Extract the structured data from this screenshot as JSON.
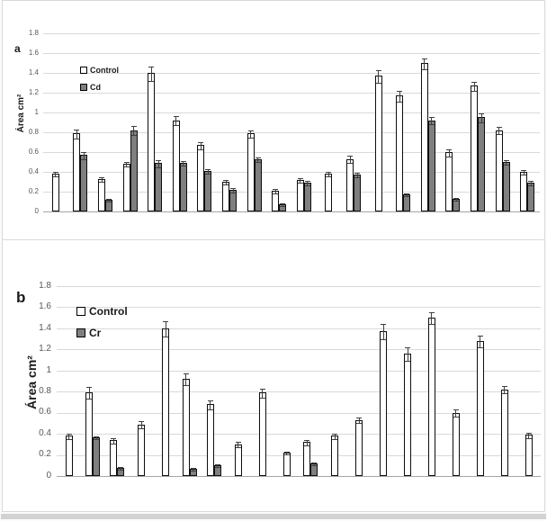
{
  "page": {
    "background": "#ffffff",
    "panel_border_color": "#d9d9d9",
    "gridline_color": "#d9d9d9",
    "baseline_color": "#a6a6a6",
    "control_fill": "#ffffff",
    "treated_fill": "#7f7f7f",
    "bar_border_color": "#0d0d0d",
    "error_bar_color": "#3f3f3f"
  },
  "chart_data": [
    {
      "type": "bar",
      "panel_label": "a",
      "ylabel": "Área cm²",
      "ylim": [
        0,
        1.8
      ],
      "yticks": [
        0,
        0.2,
        0.4,
        0.6,
        0.8,
        1,
        1.2,
        1.4,
        1.6,
        1.8
      ],
      "yticklabels": [
        "0",
        "0.2",
        "0.4",
        "0.6",
        "0.8",
        "1",
        "1.2",
        "1.4",
        "1.6",
        "1.8"
      ],
      "grid": true,
      "legend_position": "upper-left-inset",
      "legend": [
        "Control",
        "Cd"
      ],
      "groups": 20,
      "series": [
        {
          "name": "Control",
          "color": "#ffffff",
          "values": [
            0.38,
            0.79,
            0.33,
            0.48,
            1.4,
            0.92,
            0.67,
            0.3,
            0.79,
            0.21,
            0.32,
            0.38,
            0.53,
            1.37,
            1.17,
            1.5,
            0.6,
            1.27,
            0.82,
            0.4
          ],
          "errors": [
            0.02,
            0.04,
            0.02,
            0.02,
            0.07,
            0.04,
            0.03,
            0.02,
            0.03,
            0.02,
            0.02,
            0.02,
            0.03,
            0.06,
            0.05,
            0.05,
            0.03,
            0.04,
            0.03,
            0.02
          ]
        },
        {
          "name": "Cd",
          "color": "#7f7f7f",
          "values": [
            null,
            0.57,
            0.12,
            0.82,
            0.49,
            0.49,
            0.41,
            0.22,
            0.53,
            0.07,
            0.29,
            null,
            0.37,
            null,
            0.17,
            0.92,
            0.13,
            0.95,
            0.5,
            0.29
          ],
          "errors": [
            null,
            0.03,
            0.01,
            0.04,
            0.03,
            0.02,
            0.02,
            0.02,
            0.02,
            0.01,
            0.02,
            null,
            0.02,
            null,
            0.01,
            0.03,
            0.01,
            0.04,
            0.02,
            0.02
          ]
        }
      ]
    },
    {
      "type": "bar",
      "panel_label": "b",
      "ylabel": "Área cm²",
      "ylim": [
        0,
        1.8
      ],
      "yticks": [
        0,
        0.2,
        0.4,
        0.6,
        0.8,
        1,
        1.2,
        1.4,
        1.6,
        1.8
      ],
      "yticklabels": [
        "0",
        "0.2",
        "0.4",
        "0.6",
        "0.8",
        "1",
        "1.2",
        "1.4",
        "1.6",
        "1.8"
      ],
      "grid": true,
      "legend_position": "upper-left-inset",
      "legend": [
        "Control",
        "Cr"
      ],
      "groups": 20,
      "series": [
        {
          "name": "Control",
          "color": "#ffffff",
          "values": [
            0.38,
            0.79,
            0.34,
            0.49,
            1.4,
            0.92,
            0.68,
            0.3,
            0.79,
            0.22,
            0.32,
            0.38,
            0.53,
            1.37,
            1.16,
            1.5,
            0.6,
            1.28,
            0.82,
            0.39
          ],
          "errors": [
            0.02,
            0.05,
            0.02,
            0.03,
            0.07,
            0.05,
            0.04,
            0.02,
            0.04,
            0.01,
            0.02,
            0.02,
            0.02,
            0.07,
            0.06,
            0.05,
            0.03,
            0.05,
            0.03,
            0.02
          ]
        },
        {
          "name": "Cr",
          "color": "#7f7f7f",
          "values": [
            null,
            0.37,
            0.08,
            null,
            null,
            0.07,
            0.1,
            null,
            null,
            null,
            0.12,
            null,
            null,
            null,
            null,
            null,
            null,
            null,
            null,
            null
          ],
          "errors": [
            null,
            0.01,
            0.01,
            null,
            null,
            0.01,
            0.01,
            null,
            null,
            null,
            0.01,
            null,
            null,
            null,
            null,
            null,
            null,
            null,
            null,
            null
          ]
        }
      ]
    }
  ]
}
